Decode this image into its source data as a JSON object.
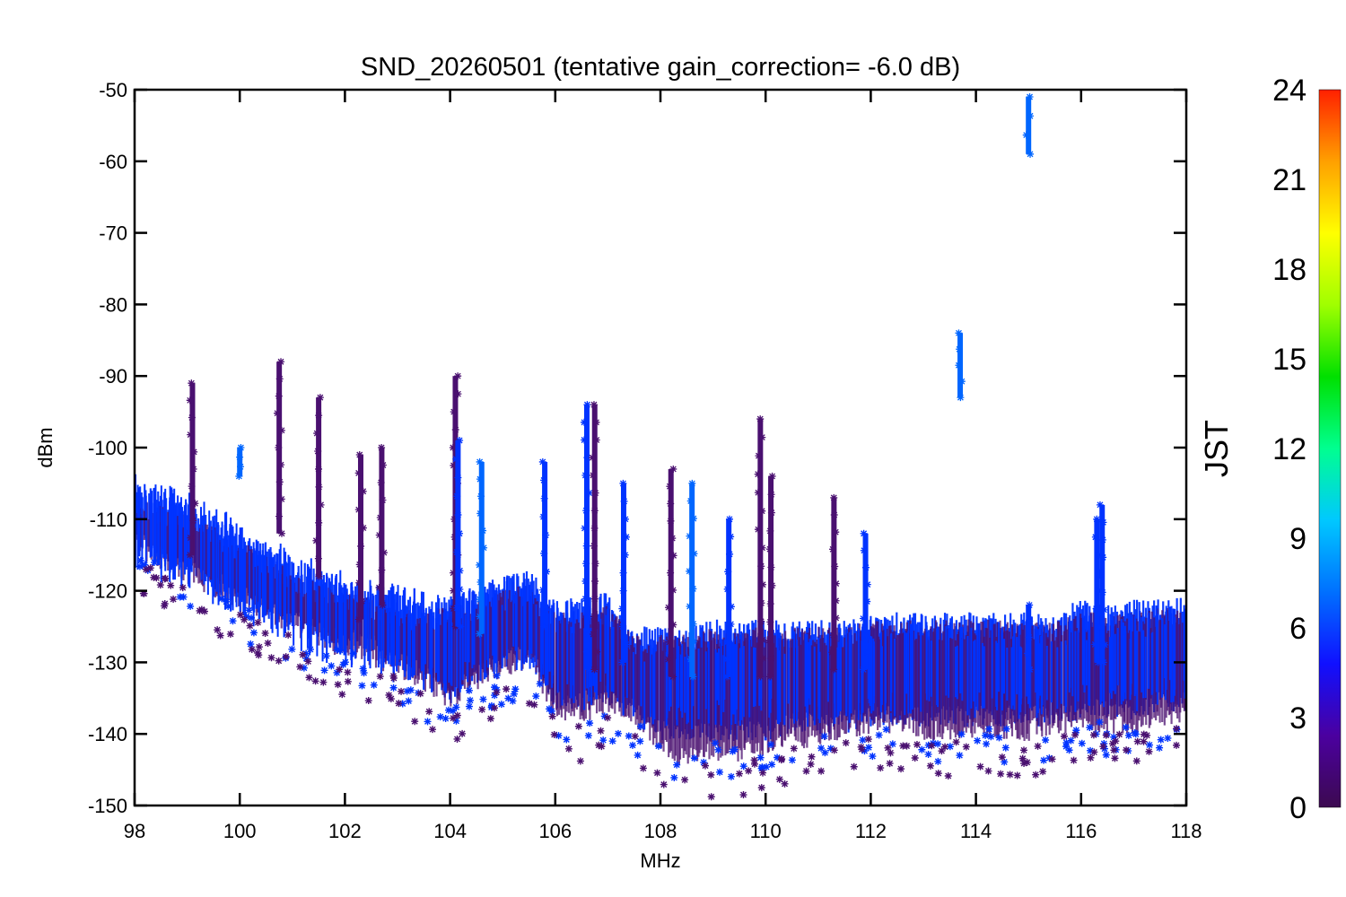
{
  "chart_data": {
    "type": "scatter",
    "title": "SND_20260501 (tentative gain_correction= -6.0 dB)",
    "xlabel": "MHz",
    "ylabel": "dBm",
    "xlim": [
      98,
      118
    ],
    "ylim": [
      -150,
      -50
    ],
    "x_ticks": [
      98,
      100,
      102,
      104,
      106,
      108,
      110,
      112,
      114,
      116,
      118
    ],
    "y_ticks": [
      -50,
      -60,
      -70,
      -80,
      -90,
      -100,
      -110,
      -120,
      -130,
      -140,
      -150
    ],
    "x_tick_labels": [
      "98",
      "100",
      "102",
      "104",
      "106",
      "108",
      "110",
      "112",
      "114",
      "116",
      "118"
    ],
    "y_tick_labels": [
      "-50",
      "-60",
      "-70",
      "-80",
      "-90",
      "-100",
      "-110",
      "-120",
      "-130",
      "-140",
      "-150"
    ],
    "marker": "asterisk",
    "colorbar": {
      "label": "JST",
      "range": [
        0,
        24
      ],
      "ticks": [
        0,
        3,
        6,
        9,
        12,
        15,
        18,
        21,
        24
      ],
      "tick_labels": [
        "0",
        "3",
        "6",
        "9",
        "12",
        "15",
        "18",
        "21",
        "24"
      ],
      "colormap": [
        "#3c0a50",
        "#4b00a0",
        "#1010ff",
        "#0070ff",
        "#00c8ff",
        "#00ff90",
        "#00e000",
        "#a0ff00",
        "#ffff00",
        "#ffa000",
        "#ff2000"
      ]
    },
    "series": [
      {
        "color": "#0033ff",
        "x": [
          98.0,
          98.5,
          99.0,
          99.5,
          100.0,
          100.5,
          101.0,
          101.5,
          102.0,
          102.5,
          103.0,
          103.5,
          104.0,
          104.5,
          105.0,
          105.5,
          106.0,
          106.5,
          107.0,
          107.5,
          108.0,
          108.5,
          109.0,
          109.5,
          110.0,
          110.5,
          111.0,
          111.5,
          112.0,
          112.5,
          113.0,
          113.5,
          114.0,
          114.5,
          115.0,
          115.5,
          116.0,
          116.5,
          117.0,
          117.5,
          118.0
        ],
        "y_median": [
          -110,
          -112,
          -113,
          -115,
          -117,
          -119,
          -121,
          -123,
          -124,
          -125,
          -126,
          -127,
          -128,
          -126,
          -125,
          -124,
          -129,
          -130,
          -128,
          -133,
          -133,
          -133,
          -132,
          -132,
          -132,
          -132,
          -132,
          -132,
          -131,
          -131,
          -131,
          -131,
          -131,
          -131,
          -131,
          -131,
          -130,
          -130,
          -130,
          -129,
          -129
        ],
        "y_min": [
          -114,
          -116,
          -118,
          -120,
          -122,
          -124,
          -125,
          -127,
          -128,
          -129,
          -131,
          -133,
          -136,
          -133,
          -131,
          -130,
          -137,
          -137,
          -136,
          -138,
          -141,
          -142,
          -141,
          -141,
          -141,
          -140,
          -140,
          -140,
          -139,
          -139,
          -139,
          -139,
          -139,
          -139,
          -139,
          -139,
          -138,
          -138,
          -138,
          -137,
          -137
        ],
        "y_max": [
          -104,
          -106,
          -107,
          -109,
          -111,
          -113,
          -115,
          -117,
          -118,
          -119,
          -120,
          -121,
          -120,
          -119,
          -118,
          -117,
          -121,
          -121,
          -120,
          -125,
          -125,
          -125,
          -124,
          -124,
          -124,
          -124,
          -124,
          -124,
          -123,
          -123,
          -123,
          -123,
          -123,
          -123,
          -123,
          -123,
          -121,
          -122,
          -121,
          -121,
          -121
        ]
      },
      {
        "color": "#4a1070",
        "x": [
          98.0,
          98.5,
          99.0,
          99.5,
          100.0,
          100.5,
          101.0,
          101.5,
          102.0,
          102.5,
          103.0,
          103.5,
          104.0,
          104.5,
          105.0,
          105.5,
          106.0,
          106.5,
          107.0,
          107.5,
          108.0,
          108.5,
          109.0,
          109.5,
          110.0,
          110.5,
          111.0,
          111.5,
          112.0,
          112.5,
          113.0,
          113.5,
          114.0,
          114.5,
          115.0,
          115.5,
          116.0,
          116.5,
          117.0,
          117.5,
          118.0
        ],
        "y_median": [
          -111,
          -113,
          -114,
          -116,
          -118,
          -120,
          -122,
          -124,
          -125,
          -126,
          -127,
          -128,
          -129,
          -127,
          -126,
          -125,
          -130,
          -131,
          -129,
          -134,
          -135,
          -136,
          -135,
          -135,
          -135,
          -134,
          -134,
          -134,
          -133,
          -133,
          -133,
          -133,
          -133,
          -133,
          -133,
          -133,
          -132,
          -132,
          -132,
          -131,
          -131
        ],
        "y_min": [
          -115,
          -117,
          -119,
          -121,
          -123,
          -125,
          -126,
          -128,
          -130,
          -131,
          -132,
          -134,
          -137,
          -134,
          -132,
          -131,
          -138,
          -139,
          -137,
          -139,
          -143,
          -145,
          -144,
          -144,
          -143,
          -142,
          -142,
          -141,
          -140,
          -140,
          -141,
          -141,
          -141,
          -141,
          -141,
          -140,
          -140,
          -140,
          -140,
          -139,
          -139
        ],
        "y_max": [
          -106,
          -108,
          -109,
          -111,
          -113,
          -115,
          -117,
          -119,
          -120,
          -121,
          -122,
          -123,
          -122,
          -121,
          -120,
          -119,
          -123,
          -123,
          -122,
          -126,
          -126,
          -126,
          -125,
          -125,
          -125,
          -125,
          -125,
          -125,
          -124,
          -124,
          -124,
          -124,
          -124,
          -124,
          -124,
          -124,
          -123,
          -123,
          -123,
          -122,
          -122
        ]
      }
    ],
    "spikes": [
      {
        "x": 99.1,
        "ymin": -115,
        "ymax": -91,
        "color": "#4a1070"
      },
      {
        "x": 100.0,
        "ymin": -104,
        "ymax": -100,
        "color": "#0066ff"
      },
      {
        "x": 100.75,
        "ymin": -112,
        "ymax": -88,
        "color": "#4a1070"
      },
      {
        "x": 101.5,
        "ymin": -118,
        "ymax": -93,
        "color": "#4a1070"
      },
      {
        "x": 102.3,
        "ymin": -124,
        "ymax": -101,
        "color": "#4a1070"
      },
      {
        "x": 102.7,
        "ymin": -122,
        "ymax": -100,
        "color": "#4a1070"
      },
      {
        "x": 104.1,
        "ymin": -125,
        "ymax": -90,
        "color": "#4a1070"
      },
      {
        "x": 104.15,
        "ymin": -125,
        "ymax": -99,
        "color": "#0033ff"
      },
      {
        "x": 104.6,
        "ymin": -126,
        "ymax": -102,
        "color": "#0066ff"
      },
      {
        "x": 105.8,
        "ymin": -125,
        "ymax": -102,
        "color": "#0033ff"
      },
      {
        "x": 106.6,
        "ymin": -131,
        "ymax": -94,
        "color": "#0033ff"
      },
      {
        "x": 106.75,
        "ymin": -131,
        "ymax": -94,
        "color": "#4a1070"
      },
      {
        "x": 107.3,
        "ymin": -130,
        "ymax": -105,
        "color": "#0033ff"
      },
      {
        "x": 108.2,
        "ymin": -132,
        "ymax": -103,
        "color": "#4a1070"
      },
      {
        "x": 108.6,
        "ymin": -132,
        "ymax": -105,
        "color": "#0066ff"
      },
      {
        "x": 109.3,
        "ymin": -132,
        "ymax": -110,
        "color": "#0033ff"
      },
      {
        "x": 109.9,
        "ymin": -132,
        "ymax": -96,
        "color": "#4a1070"
      },
      {
        "x": 110.1,
        "ymin": -132,
        "ymax": -104,
        "color": "#4a1070"
      },
      {
        "x": 111.3,
        "ymin": -131,
        "ymax": -107,
        "color": "#4a1070"
      },
      {
        "x": 111.9,
        "ymin": -131,
        "ymax": -112,
        "color": "#0033ff"
      },
      {
        "x": 113.7,
        "ymin": -93,
        "ymax": -84,
        "color": "#0066ff"
      },
      {
        "x": 115.0,
        "ymin": -59,
        "ymax": -51,
        "color": "#0066ff"
      },
      {
        "x": 115.0,
        "ymin": -131,
        "ymax": -122,
        "color": "#0033ff"
      },
      {
        "x": 116.3,
        "ymin": -130,
        "ymax": -110,
        "color": "#0033ff"
      },
      {
        "x": 116.4,
        "ymin": -130,
        "ymax": -108,
        "color": "#0033ff"
      }
    ]
  }
}
